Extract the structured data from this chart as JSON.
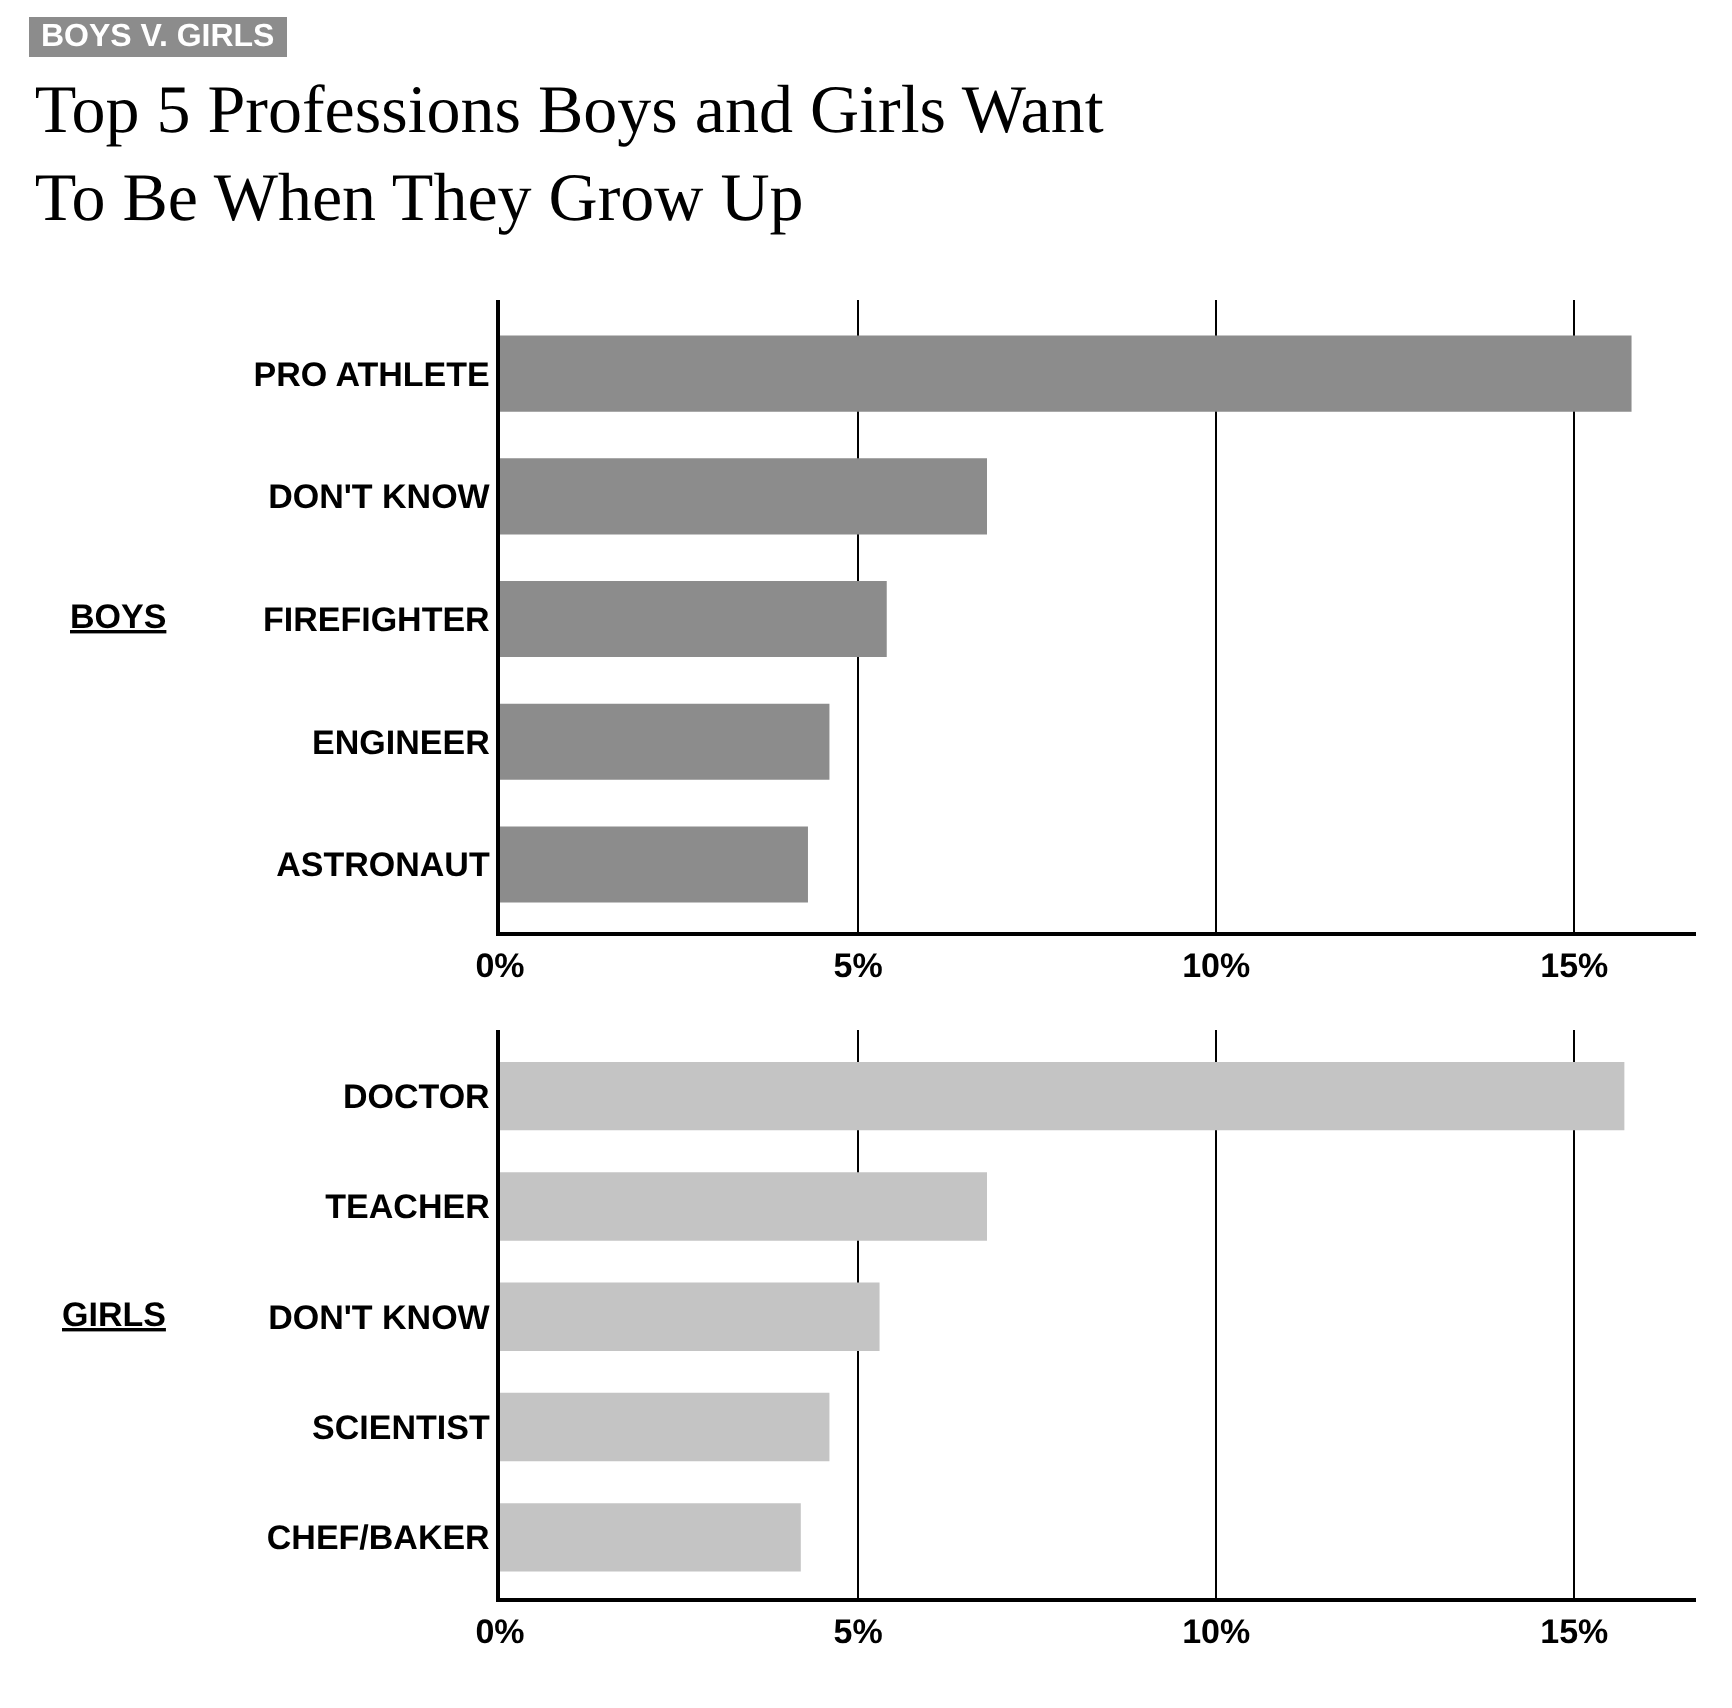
{
  "chart_data": [
    {
      "type": "bar",
      "orientation": "horizontal",
      "subtitle": "BOYS V. GIRLS",
      "title": "Top 5 Professions Boys and Girls Want\nTo Be When They Grow Up",
      "ylabel": "BOYS",
      "categories": [
        "PRO ATHLETE",
        "DON'T KNOW",
        "FIREFIGHTER",
        "ENGINEER",
        "ASTRONAUT"
      ],
      "values": [
        15.8,
        6.8,
        5.4,
        4.6,
        4.3
      ],
      "color": "#8c8c8c",
      "xlim": [
        0,
        16.7
      ],
      "xticks": [
        {
          "value": 0,
          "label": "0%"
        },
        {
          "value": 5,
          "label": "5%"
        },
        {
          "value": 10,
          "label": "10%"
        },
        {
          "value": 15,
          "label": "15%"
        }
      ],
      "grid": "x"
    },
    {
      "type": "bar",
      "orientation": "horizontal",
      "ylabel": "GIRLS",
      "categories": [
        "DOCTOR",
        "TEACHER",
        "DON'T KNOW",
        "SCIENTIST",
        "CHEF/BAKER"
      ],
      "values": [
        15.7,
        6.8,
        5.3,
        4.6,
        4.2
      ],
      "color": "#c4c4c4",
      "xlim": [
        0,
        16.7
      ],
      "xticks": [
        {
          "value": 0,
          "label": "0%"
        },
        {
          "value": 5,
          "label": "5%"
        },
        {
          "value": 10,
          "label": "10%"
        },
        {
          "value": 15,
          "label": "15%"
        }
      ],
      "grid": "x"
    }
  ]
}
